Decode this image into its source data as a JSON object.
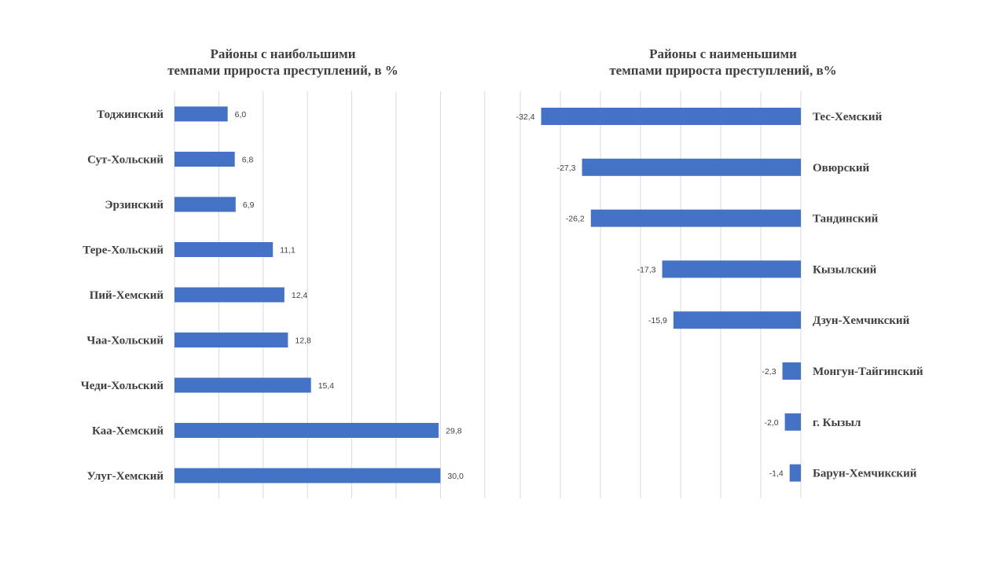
{
  "colors": {
    "bar": "#4472C4",
    "grid": "#d9d9d9",
    "text": "#404040"
  },
  "chart_data": [
    {
      "type": "bar",
      "orientation": "horizontal",
      "title_lines": [
        "Районы с наибольшими",
        "темпами прироста преступлений, в %"
      ],
      "categories": [
        "Тоджинский",
        "Сут-Хольский",
        "Эрзинский",
        "Тере-Хольский",
        "Пий-Хемский",
        "Чаа-Хольский",
        "Чеди-Хольский",
        "Каа-Хемский",
        "Улуг-Хемский"
      ],
      "values": [
        6.0,
        6.8,
        6.9,
        11.1,
        12.4,
        12.8,
        15.4,
        29.8,
        30.0
      ],
      "value_labels": [
        "6,0",
        "6,8",
        "6,9",
        "11,1",
        "12,4",
        "12,8",
        "15,4",
        "29,8",
        "30,0"
      ],
      "xlim": [
        0,
        35
      ],
      "grid": true,
      "legend": "none"
    },
    {
      "type": "bar",
      "orientation": "horizontal",
      "title_lines": [
        "Районы с наименьшими",
        "темпами прироста преступлений, в%"
      ],
      "categories": [
        "Тес-Хемский",
        "Овюрский",
        "Тандинский",
        "Кызылский",
        "Дзун-Хемчикский",
        "Монгун-Тайгинский",
        "г. Кызыл",
        "Барун-Хемчикский"
      ],
      "values": [
        -32.4,
        -27.3,
        -26.2,
        -17.3,
        -15.9,
        -2.3,
        -2.0,
        -1.4
      ],
      "value_labels": [
        "-32,4",
        "-27,3",
        "-26,2",
        "-17,3",
        "-15,9",
        "-2,3",
        "-2,0",
        "-1,4"
      ],
      "xlim": [
        -35,
        0
      ],
      "grid": true,
      "legend": "none"
    }
  ]
}
